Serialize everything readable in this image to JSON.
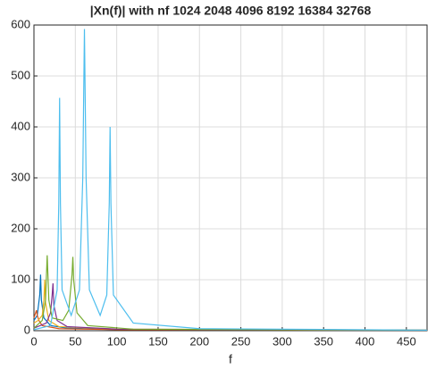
{
  "chart_data": {
    "type": "line",
    "title": "|Xn(f)| with nf 1024   2048   4096   8192  16384  32768",
    "xlabel": "f",
    "xlim": [
      0,
      475
    ],
    "ylim": [
      0,
      600
    ],
    "xticks": [
      0,
      50,
      100,
      150,
      200,
      250,
      300,
      350,
      400,
      450
    ],
    "yticks": [
      0,
      100,
      200,
      300,
      400,
      500,
      600
    ],
    "grid": true,
    "series": [
      {
        "color": "#0072bd",
        "x": [
          0,
          4,
          7,
          8,
          9,
          12,
          20,
          40,
          100,
          475
        ],
        "values": [
          20,
          30,
          70,
          110,
          60,
          25,
          10,
          5,
          2,
          1
        ]
      },
      {
        "color": "#d95319",
        "x": [
          0,
          2,
          3,
          4,
          6,
          10,
          30,
          100,
          475
        ],
        "values": [
          25,
          35,
          40,
          30,
          20,
          10,
          4,
          2,
          1
        ]
      },
      {
        "color": "#edb120",
        "x": [
          0,
          5,
          10,
          12,
          13,
          14,
          18,
          30,
          100,
          475
        ],
        "values": [
          15,
          20,
          30,
          60,
          100,
          55,
          20,
          8,
          3,
          1
        ]
      },
      {
        "color": "#7e2f8e",
        "x": [
          0,
          15,
          20,
          22,
          23,
          24,
          28,
          40,
          100,
          475
        ],
        "values": [
          5,
          15,
          35,
          70,
          93,
          50,
          20,
          8,
          3,
          1
        ]
      },
      {
        "color": "#77ac30",
        "x": [
          0,
          10,
          14,
          16,
          18,
          22,
          35,
          42,
          46,
          47,
          48,
          52,
          65,
          120,
          475
        ],
        "values": [
          5,
          20,
          60,
          148,
          60,
          25,
          20,
          40,
          110,
          145,
          100,
          35,
          10,
          3,
          1
        ]
      },
      {
        "color": "#4dbeee",
        "x": [
          0,
          20,
          28,
          30,
          31,
          32,
          34,
          45,
          55,
          59,
          61,
          63,
          67,
          80,
          88,
          91,
          92,
          93,
          96,
          120,
          200,
          475
        ],
        "values": [
          2,
          10,
          80,
          250,
          457,
          250,
          80,
          30,
          80,
          300,
          592,
          300,
          80,
          30,
          70,
          250,
          400,
          250,
          70,
          15,
          4,
          1
        ]
      }
    ]
  }
}
